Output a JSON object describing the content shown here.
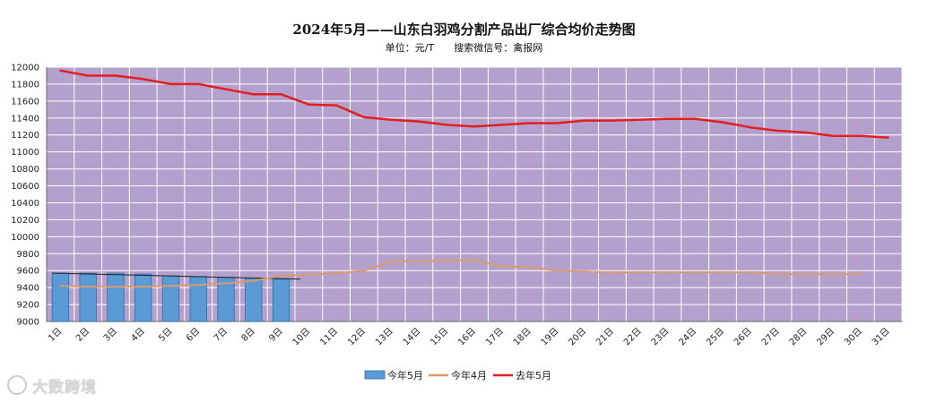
{
  "header": {
    "title": "2024年5月——山东白羽鸡分割产品出厂综合均价走势图",
    "unit": "单位：元/T",
    "search": "搜索微信号：禽报网"
  },
  "watermark": "大数跨境",
  "colors": {
    "plot_bg": "#b4a0cc",
    "bar_fill": "#5b9bd5",
    "bar_stroke": "#2e6da4",
    "line_april": "#d99a6c",
    "line_last_year": "#e02020",
    "grid": "#ffffff"
  },
  "chart_data": {
    "type": "bar",
    "title": "2024年5月——山东白羽鸡分割产品出厂综合均价走势图",
    "subtitle": "单位：元/T      搜索微信号：禽报网",
    "categories": [
      "1日",
      "2日",
      "3日",
      "4日",
      "5日",
      "6日",
      "7日",
      "8日",
      "9日",
      "10日",
      "11日",
      "12日",
      "13日",
      "14日",
      "15日",
      "16日",
      "17日",
      "18日",
      "19日",
      "20日",
      "21日",
      "22日",
      "23日",
      "24日",
      "25日",
      "26日",
      "27日",
      "28日",
      "29日",
      "30日",
      "31日"
    ],
    "ylim": [
      9000,
      12000
    ],
    "yticks": [
      9000,
      9200,
      9400,
      9600,
      9800,
      10000,
      10200,
      10400,
      10600,
      10800,
      11000,
      11200,
      11400,
      11600,
      11800,
      12000
    ],
    "grid": true,
    "legend_position": "bottom",
    "series": [
      {
        "name": "今年5月",
        "kind": "bar",
        "values": [
          9570,
          9570,
          9570,
          9560,
          9540,
          9530,
          9520,
          9510,
          9500,
          null,
          null,
          null,
          null,
          null,
          null,
          null,
          null,
          null,
          null,
          null,
          null,
          null,
          null,
          null,
          null,
          null,
          null,
          null,
          null,
          null,
          null
        ]
      },
      {
        "name": "今年4月",
        "kind": "line",
        "values": [
          9420,
          9410,
          9410,
          9410,
          9420,
          9430,
          9450,
          9480,
          9540,
          9550,
          9570,
          9600,
          9710,
          9710,
          9720,
          9720,
          9650,
          9640,
          9600,
          9590,
          9580,
          9580,
          9580,
          9580,
          9580,
          9580,
          9560,
          9560,
          9560,
          9560,
          null
        ]
      },
      {
        "name": "去年5月",
        "kind": "line",
        "values": [
          11960,
          11900,
          11900,
          11860,
          11800,
          11800,
          11740,
          11680,
          11680,
          11560,
          11550,
          11410,
          11380,
          11360,
          11320,
          11300,
          11320,
          11340,
          11340,
          11370,
          11370,
          11380,
          11390,
          11390,
          11350,
          11290,
          11250,
          11230,
          11190,
          11190,
          11170
        ]
      }
    ],
    "overlay_line": {
      "from_day": "1日",
      "to_day": "10日",
      "y": [
        9570,
        9500
      ]
    }
  }
}
